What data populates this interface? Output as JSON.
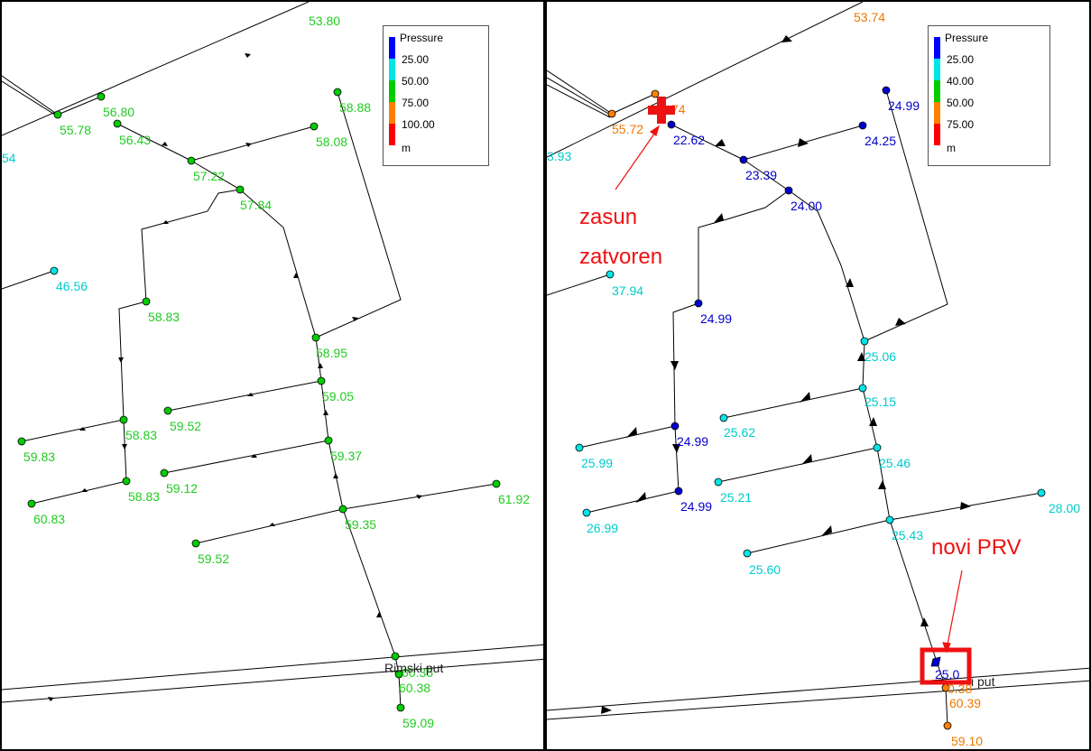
{
  "left": {
    "legend": {
      "title": "Pressure",
      "values": [
        "25.00",
        "50.00",
        "75.00",
        "100.00"
      ],
      "unit": "m",
      "colors": [
        "#0000ff",
        "#00e5e5",
        "#00cc00",
        "#ff7f00",
        "#ff0000"
      ]
    },
    "street_label": "Rimski put",
    "nodes": [
      "53.80",
      "56.80",
      "55.78",
      "56.43",
      "57.22",
      "58.88",
      "58.08",
      "57.84",
      "46.56",
      "58.83",
      "58.95",
      "59.05",
      "59.52",
      "58.83",
      "59.83",
      "59.37",
      "59.12",
      "58.83",
      "60.83",
      "59.35",
      "61.92",
      "59.52",
      "60.38",
      "59.09",
      "54",
      "60.36"
    ]
  },
  "right": {
    "legend": {
      "title": "Pressure",
      "values": [
        "25.00",
        "40.00",
        "50.00",
        "75.00"
      ],
      "unit": "m",
      "colors": [
        "#0000ff",
        "#00e5e5",
        "#00cc00",
        "#ff7f00",
        "#ff0000"
      ]
    },
    "street_label": "i put",
    "annotations": {
      "valve_line1": "zasun",
      "valve_line2": "zatvoren",
      "prv": "novi PRV"
    },
    "nodes": [
      "53.74",
      "55.72",
      "74",
      "22.62",
      "24.99",
      "24.25",
      "23.39",
      "24.00",
      "37.94",
      "24.99",
      "25.06",
      "25.15",
      "25.62",
      "24.99",
      "25.99",
      "25.46",
      "25.21",
      "24.99",
      "26.99",
      "25.43",
      "28.00",
      "25.60",
      "25.0",
      "60.39",
      "59.10",
      "3.93",
      "0.38"
    ]
  }
}
